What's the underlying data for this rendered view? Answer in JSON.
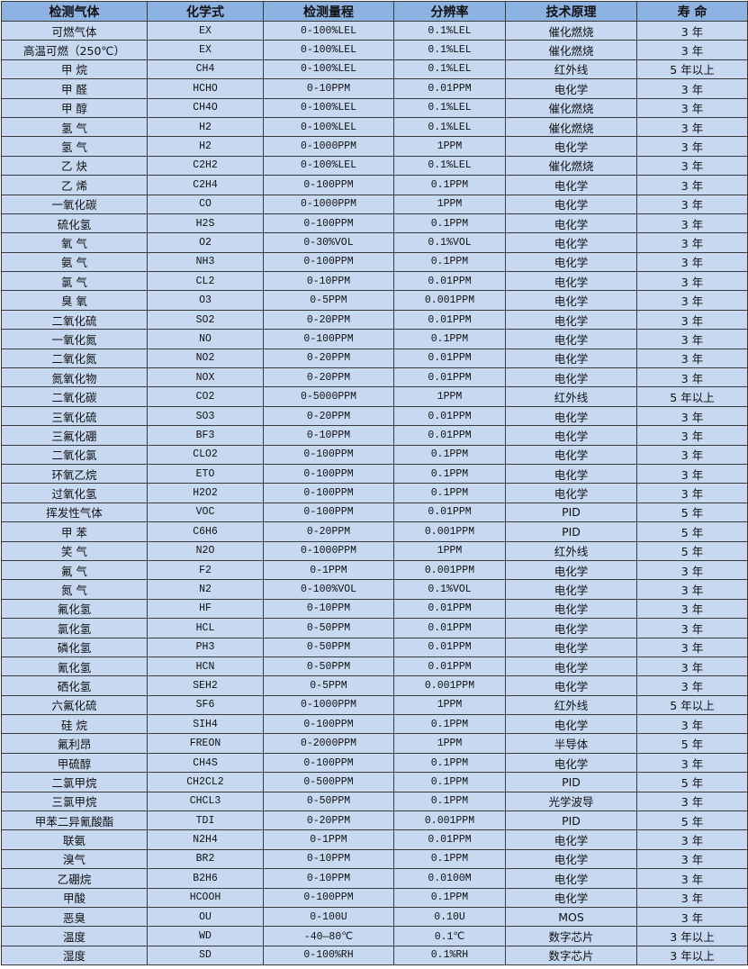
{
  "colors": {
    "header_bg": "#8db3e2",
    "row_bg": "#c6d9f1",
    "border": "#3a3a3a"
  },
  "table": {
    "headers": [
      "检测气体",
      "化学式",
      "检测量程",
      "分辨率",
      "技术原理",
      "寿 命"
    ],
    "rows": [
      [
        "可燃气体",
        "EX",
        "0-100%LEL",
        "0.1%LEL",
        "催化燃烧",
        "3 年"
      ],
      [
        "高温可燃（250℃）",
        "EX",
        "0-100%LEL",
        "0.1%LEL",
        "催化燃烧",
        "3 年"
      ],
      [
        "甲 烷",
        "CH4",
        "0-100%LEL",
        "0.1%LEL",
        "红外线",
        "5 年以上"
      ],
      [
        "甲 醛",
        "HCHO",
        "0-10PPM",
        "0.01PPM",
        "电化学",
        "3 年"
      ],
      [
        "甲 醇",
        "CH4O",
        "0-100%LEL",
        "0.1%LEL",
        "催化燃烧",
        "3 年"
      ],
      [
        "氢 气",
        "H2",
        "0-100%LEL",
        "0.1%LEL",
        "催化燃烧",
        "3 年"
      ],
      [
        "氢 气",
        "H2",
        "0-1000PPM",
        "1PPM",
        "电化学",
        "3 年"
      ],
      [
        "乙 炔",
        "C2H2",
        "0-100%LEL",
        "0.1%LEL",
        "催化燃烧",
        "3 年"
      ],
      [
        "乙 烯",
        "C2H4",
        "0-100PPM",
        "0.1PPM",
        "电化学",
        "3 年"
      ],
      [
        "一氧化碳",
        "CO",
        "0-1000PPM",
        "1PPM",
        "电化学",
        "3 年"
      ],
      [
        "硫化氢",
        "H2S",
        "0-100PPM",
        "0.1PPM",
        "电化学",
        "3 年"
      ],
      [
        "氧 气",
        "O2",
        "0-30%VOL",
        "0.1%VOL",
        "电化学",
        "3 年"
      ],
      [
        "氨 气",
        "NH3",
        "0-100PPM",
        "0.1PPM",
        "电化学",
        "3 年"
      ],
      [
        "氯 气",
        "CL2",
        "0-10PPM",
        "0.01PPM",
        "电化学",
        "3 年"
      ],
      [
        "臭 氧",
        "O3",
        "0-5PPM",
        "0.001PPM",
        "电化学",
        "3 年"
      ],
      [
        "二氧化硫",
        "SO2",
        "0-20PPM",
        "0.01PPM",
        "电化学",
        "3 年"
      ],
      [
        "一氧化氮",
        "NO",
        "0-100PPM",
        "0.1PPM",
        "电化学",
        "3 年"
      ],
      [
        "二氧化氮",
        "NO2",
        "0-20PPM",
        "0.01PPM",
        "电化学",
        "3 年"
      ],
      [
        "氮氧化物",
        "NOX",
        "0-20PPM",
        "0.01PPM",
        "电化学",
        "3 年"
      ],
      [
        "二氧化碳",
        "CO2",
        "0-5000PPM",
        "1PPM",
        "红外线",
        "5 年以上"
      ],
      [
        "三氧化硫",
        "SO3",
        "0-20PPM",
        "0.01PPM",
        "电化学",
        "3 年"
      ],
      [
        "三氟化硼",
        "BF3",
        "0-10PPM",
        "0.01PPM",
        "电化学",
        "3 年"
      ],
      [
        "二氧化氯",
        "CLO2",
        "0-100PPM",
        "0.1PPM",
        "电化学",
        "3 年"
      ],
      [
        "环氧乙烷",
        "ETO",
        "0-100PPM",
        "0.1PPM",
        "电化学",
        "3 年"
      ],
      [
        "过氧化氢",
        "H2O2",
        "0-100PPM",
        "0.1PPM",
        "电化学",
        "3 年"
      ],
      [
        "挥发性气体",
        "VOC",
        "0-100PPM",
        "0.01PPM",
        "PID",
        "5 年"
      ],
      [
        "甲 苯",
        "C6H6",
        "0-20PPM",
        "0.001PPM",
        "PID",
        "5 年"
      ],
      [
        "笑 气",
        "N2O",
        "0-1000PPM",
        "1PPM",
        "红外线",
        "5 年"
      ],
      [
        "氟 气",
        "F2",
        "0-1PPM",
        "0.001PPM",
        "电化学",
        "3 年"
      ],
      [
        "氮 气",
        "N2",
        "0-100%VOL",
        "0.1%VOL",
        "电化学",
        "3 年"
      ],
      [
        "氟化氢",
        "HF",
        "0-10PPM",
        "0.01PPM",
        "电化学",
        "3 年"
      ],
      [
        "氯化氢",
        "HCL",
        "0-50PPM",
        "0.01PPM",
        "电化学",
        "3 年"
      ],
      [
        "磷化氢",
        "PH3",
        "0-50PPM",
        "0.01PPM",
        "电化学",
        "3 年"
      ],
      [
        "氰化氢",
        "HCN",
        "0-50PPM",
        "0.01PPM",
        "电化学",
        "3 年"
      ],
      [
        "硒化氢",
        "SEH2",
        "0-5PPM",
        "0.001PPM",
        "电化学",
        "3 年"
      ],
      [
        "六氟化硫",
        "SF6",
        "0-1000PPM",
        "1PPM",
        "红外线",
        "5 年以上"
      ],
      [
        "硅 烷",
        "SIH4",
        "0-100PPM",
        "0.1PPM",
        "电化学",
        "3 年"
      ],
      [
        "氟利昂",
        "FREON",
        "0-2000PPM",
        "1PPM",
        "半导体",
        "5 年"
      ],
      [
        "甲硫醇",
        "CH4S",
        "0-100PPM",
        "0.1PPM",
        "电化学",
        "3 年"
      ],
      [
        "二氯甲烷",
        "CH2CL2",
        "0-500PPM",
        "0.1PPM",
        "PID",
        "5 年"
      ],
      [
        "三氯甲烷",
        "CHCL3",
        "0-50PPM",
        "0.1PPM",
        "光学波导",
        "3 年"
      ],
      [
        "甲苯二异氰酸酯",
        "TDI",
        "0-20PPM",
        "0.001PPM",
        "PID",
        "5 年"
      ],
      [
        "联氨",
        "N2H4",
        "0-1PPM",
        "0.01PPM",
        "电化学",
        "3 年"
      ],
      [
        "溴气",
        "BR2",
        "0-10PPM",
        "0.1PPM",
        "电化学",
        "3 年"
      ],
      [
        "乙硼烷",
        "B2H6",
        "0-10PPM",
        "0.0100M",
        "电化学",
        "3 年"
      ],
      [
        "甲酸",
        "HCOOH",
        "0-100PPM",
        "0.1PPM",
        "电化学",
        "3 年"
      ],
      [
        "恶臭",
        "OU",
        "0-100U",
        "0.10U",
        "MOS",
        "3 年"
      ],
      [
        "温度",
        "WD",
        "-40—80℃",
        "0.1℃",
        "数字芯片",
        "3 年以上"
      ],
      [
        "湿度",
        "SD",
        "0-100%RH",
        "0.1%RH",
        "数字芯片",
        "3 年以上"
      ]
    ]
  }
}
